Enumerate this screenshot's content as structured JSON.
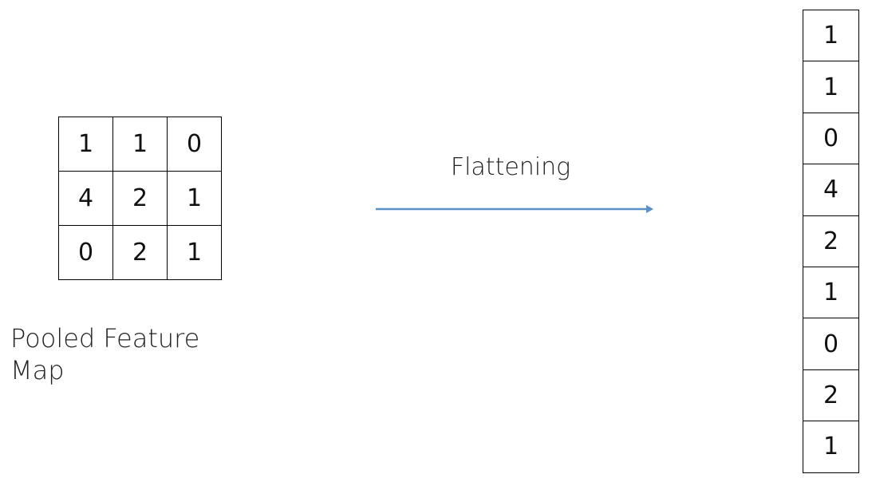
{
  "pooled_feature_map": {
    "rows": [
      [
        "1",
        "1",
        "0"
      ],
      [
        "4",
        "2",
        "1"
      ],
      [
        "0",
        "2",
        "1"
      ]
    ],
    "caption_line1": "Pooled Feature",
    "caption_line2": "Map"
  },
  "arrow": {
    "label": "Flattening",
    "color": "#5b8fc7"
  },
  "flattened_vector": [
    "1",
    "1",
    "0",
    "4",
    "2",
    "1",
    "0",
    "2",
    "1"
  ]
}
